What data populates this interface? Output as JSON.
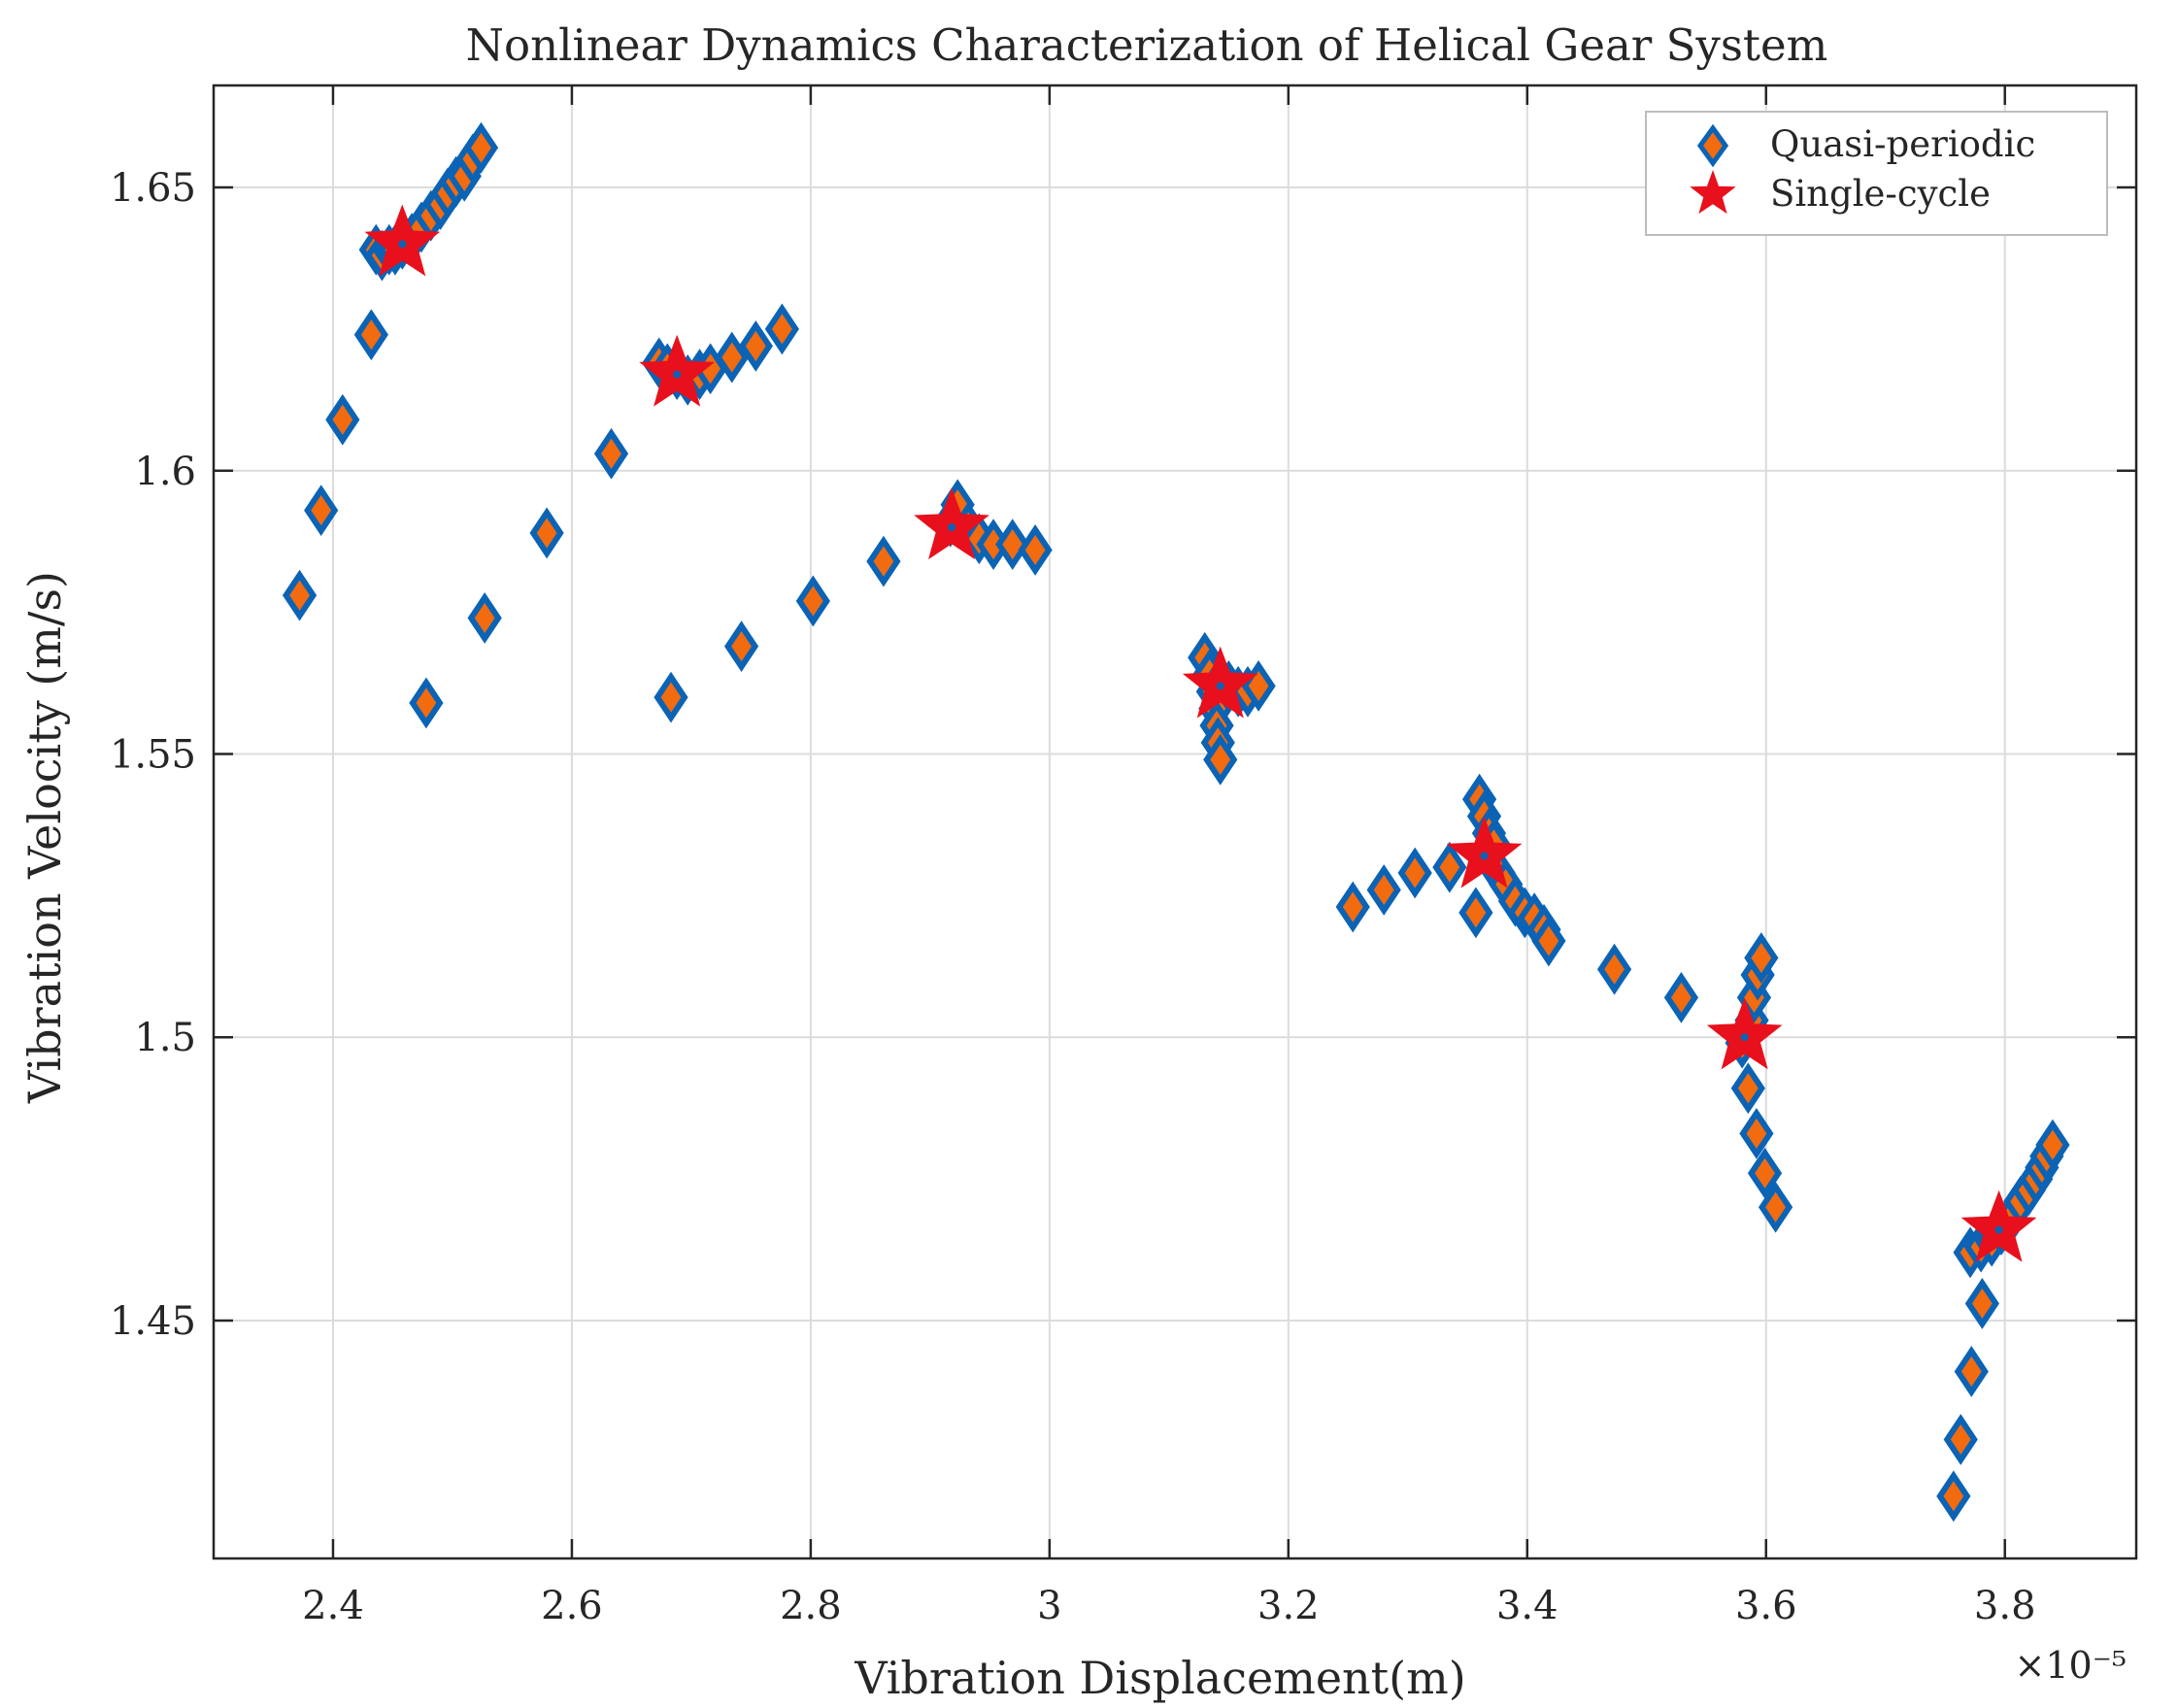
{
  "chart_data": {
    "type": "scatter",
    "title": "Nonlinear Dynamics Characterization of Helical Gear System",
    "xlabel": "Vibration Displacement(m)",
    "ylabel": "Vibration Velocity (m/s)",
    "x_exponent_label": "×10⁻⁵",
    "x_scale_factor": 1e-05,
    "xlim": [
      2.3,
      3.91
    ],
    "ylim": [
      1.408,
      1.668
    ],
    "x_ticks": [
      2.4,
      2.6,
      2.8,
      3.0,
      3.2,
      3.4,
      3.6,
      3.8
    ],
    "x_tick_labels": [
      "2.4",
      "2.6",
      "2.8",
      "3",
      "3.2",
      "3.4",
      "3.6",
      "3.8"
    ],
    "y_ticks": [
      1.45,
      1.5,
      1.55,
      1.6,
      1.65
    ],
    "y_tick_labels": [
      "1.45",
      "1.5",
      "1.55",
      "1.6",
      "1.65"
    ],
    "grid": true,
    "legend_position": "top-right",
    "colors": {
      "marker_fill": "#F26B0F",
      "marker_edge": "#0B63B5",
      "star_fill": "#E8101C",
      "axis": "#262626",
      "grid": "#DCDCDC",
      "text": "#262626",
      "legend_border": "#BDBDBD"
    },
    "series": [
      {
        "name": "Quasi-periodic",
        "marker": "diamond",
        "points": [
          [
            2.372,
            1.578
          ],
          [
            2.39,
            1.593
          ],
          [
            2.408,
            1.609
          ],
          [
            2.432,
            1.624
          ],
          [
            2.436,
            1.639
          ],
          [
            2.441,
            1.638
          ],
          [
            2.447,
            1.639
          ],
          [
            2.452,
            1.639
          ],
          [
            2.458,
            1.64
          ],
          [
            2.466,
            1.641
          ],
          [
            2.474,
            1.643
          ],
          [
            2.482,
            1.645
          ],
          [
            2.49,
            1.647
          ],
          [
            2.496,
            1.649
          ],
          [
            2.503,
            1.651
          ],
          [
            2.51,
            1.652
          ],
          [
            2.517,
            1.655
          ],
          [
            2.524,
            1.657
          ],
          [
            2.478,
            1.559
          ],
          [
            2.527,
            1.574
          ],
          [
            2.579,
            1.589
          ],
          [
            2.633,
            1.603
          ],
          [
            2.673,
            1.619
          ],
          [
            2.68,
            1.618
          ],
          [
            2.688,
            1.617
          ],
          [
            2.697,
            1.616
          ],
          [
            2.707,
            1.617
          ],
          [
            2.716,
            1.618
          ],
          [
            2.734,
            1.62
          ],
          [
            2.754,
            1.622
          ],
          [
            2.776,
            1.625
          ],
          [
            2.683,
            1.56
          ],
          [
            2.742,
            1.569
          ],
          [
            2.802,
            1.577
          ],
          [
            2.861,
            1.584
          ],
          [
            2.917,
            1.591
          ],
          [
            2.923,
            1.594
          ],
          [
            2.932,
            1.59
          ],
          [
            2.941,
            1.588
          ],
          [
            2.953,
            1.587
          ],
          [
            2.969,
            1.587
          ],
          [
            2.988,
            1.586
          ],
          [
            3.13,
            1.567
          ],
          [
            3.134,
            1.564
          ],
          [
            3.137,
            1.561
          ],
          [
            3.139,
            1.558
          ],
          [
            3.14,
            1.555
          ],
          [
            3.141,
            1.552
          ],
          [
            3.143,
            1.549
          ],
          [
            3.15,
            1.562
          ],
          [
            3.158,
            1.561
          ],
          [
            3.166,
            1.561
          ],
          [
            3.175,
            1.562
          ],
          [
            3.254,
            1.523
          ],
          [
            3.28,
            1.526
          ],
          [
            3.306,
            1.529
          ],
          [
            3.335,
            1.53
          ],
          [
            3.357,
            1.522
          ],
          [
            3.36,
            1.542
          ],
          [
            3.364,
            1.539
          ],
          [
            3.368,
            1.536
          ],
          [
            3.372,
            1.534
          ],
          [
            3.376,
            1.529
          ],
          [
            3.382,
            1.527
          ],
          [
            3.39,
            1.524
          ],
          [
            3.398,
            1.522
          ],
          [
            3.406,
            1.521
          ],
          [
            3.414,
            1.519
          ],
          [
            3.418,
            1.517
          ],
          [
            3.473,
            1.512
          ],
          [
            3.529,
            1.507
          ],
          [
            3.58,
            1.499
          ],
          [
            3.585,
            1.491
          ],
          [
            3.588,
            1.503
          ],
          [
            3.59,
            1.507
          ],
          [
            3.593,
            1.511
          ],
          [
            3.596,
            1.514
          ],
          [
            3.592,
            1.483
          ],
          [
            3.599,
            1.476
          ],
          [
            3.608,
            1.47
          ],
          [
            3.757,
            1.419
          ],
          [
            3.763,
            1.429
          ],
          [
            3.772,
            1.441
          ],
          [
            3.781,
            1.453
          ],
          [
            3.771,
            1.462
          ],
          [
            3.78,
            1.463
          ],
          [
            3.789,
            1.464
          ],
          [
            3.797,
            1.466
          ],
          [
            3.805,
            1.468
          ],
          [
            3.813,
            1.471
          ],
          [
            3.82,
            1.473
          ],
          [
            3.826,
            1.475
          ],
          [
            3.831,
            1.477
          ],
          [
            3.835,
            1.479
          ],
          [
            3.84,
            1.481
          ]
        ]
      },
      {
        "name": "Single-cycle",
        "marker": "star",
        "points": [
          [
            2.458,
            1.64
          ],
          [
            2.688,
            1.617
          ],
          [
            2.918,
            1.59
          ],
          [
            3.143,
            1.562
          ],
          [
            3.364,
            1.532
          ],
          [
            3.582,
            1.5
          ],
          [
            3.795,
            1.466
          ]
        ]
      }
    ]
  }
}
